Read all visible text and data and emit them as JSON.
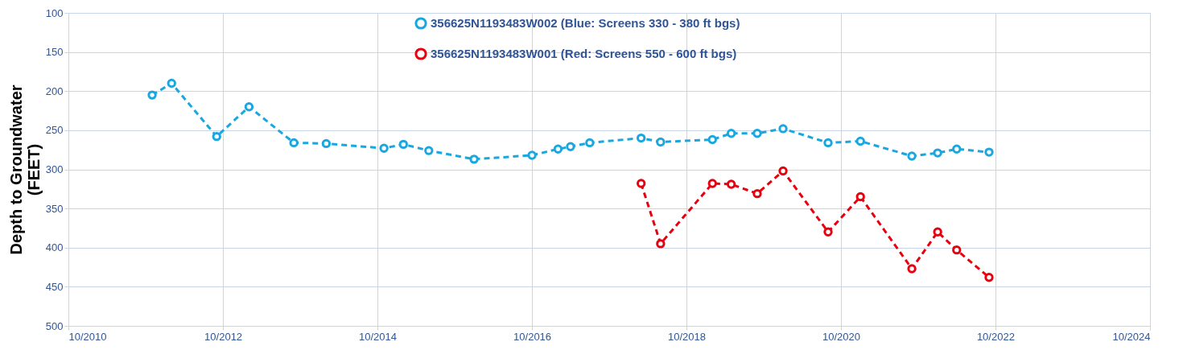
{
  "chart_data": {
    "type": "line",
    "ylabel": "Depth to Groundwater\n(FEET)",
    "ylim": [
      500,
      100
    ],
    "yticks": [
      100,
      150,
      200,
      250,
      300,
      350,
      400,
      450,
      500
    ],
    "xlim": [
      "2010-10",
      "2024-10"
    ],
    "xticks": [
      {
        "value": "2010-10",
        "label": "10/2010"
      },
      {
        "value": "2012-10",
        "label": "10/2012"
      },
      {
        "value": "2014-10",
        "label": "10/2014"
      },
      {
        "value": "2016-10",
        "label": "10/2016"
      },
      {
        "value": "2018-10",
        "label": "10/2018"
      },
      {
        "value": "2020-10",
        "label": "10/2020"
      },
      {
        "value": "2022-10",
        "label": "10/2022"
      },
      {
        "value": "2024-10",
        "label": "10/2024"
      }
    ],
    "grid": true,
    "legend": "top",
    "marker": "circle",
    "line_style": "dashed",
    "series": [
      {
        "name": "356625N1193483W002 (Blue: Screens 330 - 380 ft bgs)",
        "color": "#1aa7e0",
        "x": [
          "2011-11",
          "2012-02",
          "2012-09",
          "2013-02",
          "2013-09",
          "2014-02",
          "2014-11",
          "2015-02",
          "2015-06",
          "2016-01",
          "2016-10",
          "2017-02",
          "2017-04",
          "2017-07",
          "2018-03",
          "2018-06",
          "2019-02",
          "2019-05",
          "2019-09",
          "2020-01",
          "2020-08",
          "2021-01",
          "2021-09",
          "2022-01",
          "2022-04",
          "2022-09"
        ],
        "values": [
          205,
          190,
          258,
          220,
          266,
          267,
          273,
          268,
          276,
          287,
          282,
          274,
          271,
          266,
          260,
          265,
          262,
          254,
          254,
          248,
          266,
          264,
          283,
          279,
          274,
          278
        ]
      },
      {
        "name": "356625N1193483W001 (Red: Screens 550 - 600 ft bgs)",
        "color": "#e8000f",
        "x": [
          "2018-03",
          "2018-06",
          "2019-02",
          "2019-05",
          "2019-09",
          "2020-01",
          "2020-08",
          "2021-01",
          "2021-09",
          "2022-01",
          "2022-04",
          "2022-09"
        ],
        "values": [
          318,
          395,
          318,
          319,
          331,
          302,
          380,
          335,
          427,
          380,
          403,
          438
        ]
      }
    ]
  }
}
